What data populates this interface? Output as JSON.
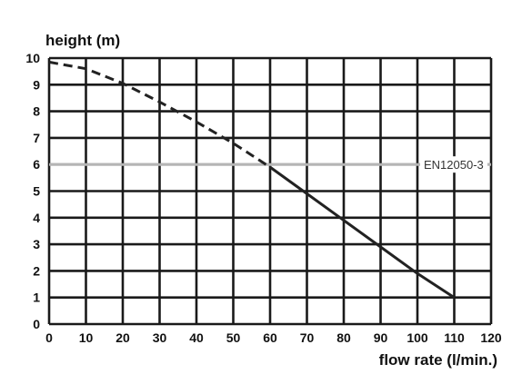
{
  "chart_data": {
    "type": "line",
    "xlabel": "flow rate (l/min.)",
    "ylabel": "height (m)",
    "xlim": [
      0,
      120
    ],
    "ylim": [
      0,
      10
    ],
    "x_ticks": [
      0,
      10,
      20,
      30,
      40,
      50,
      60,
      70,
      80,
      90,
      100,
      110,
      120
    ],
    "y_ticks": [
      0,
      1,
      2,
      3,
      4,
      5,
      6,
      7,
      8,
      9,
      10
    ],
    "grid": true,
    "series": [
      {
        "line_style": "dashed",
        "color": "#222222",
        "x": [
          0,
          10,
          20,
          30,
          40,
          50,
          60
        ],
        "y": [
          9.85,
          9.6,
          9.05,
          8.35,
          7.6,
          6.8,
          5.9
        ]
      },
      {
        "line_style": "solid",
        "color": "#222222",
        "x": [
          60,
          70,
          80,
          90,
          100,
          110
        ],
        "y": [
          5.9,
          4.9,
          3.9,
          2.9,
          1.9,
          1.0
        ]
      }
    ],
    "reference_lines": [
      {
        "axis": "y",
        "value": 6,
        "label": "EN12050-3",
        "color": "#b5b5b5"
      }
    ]
  }
}
